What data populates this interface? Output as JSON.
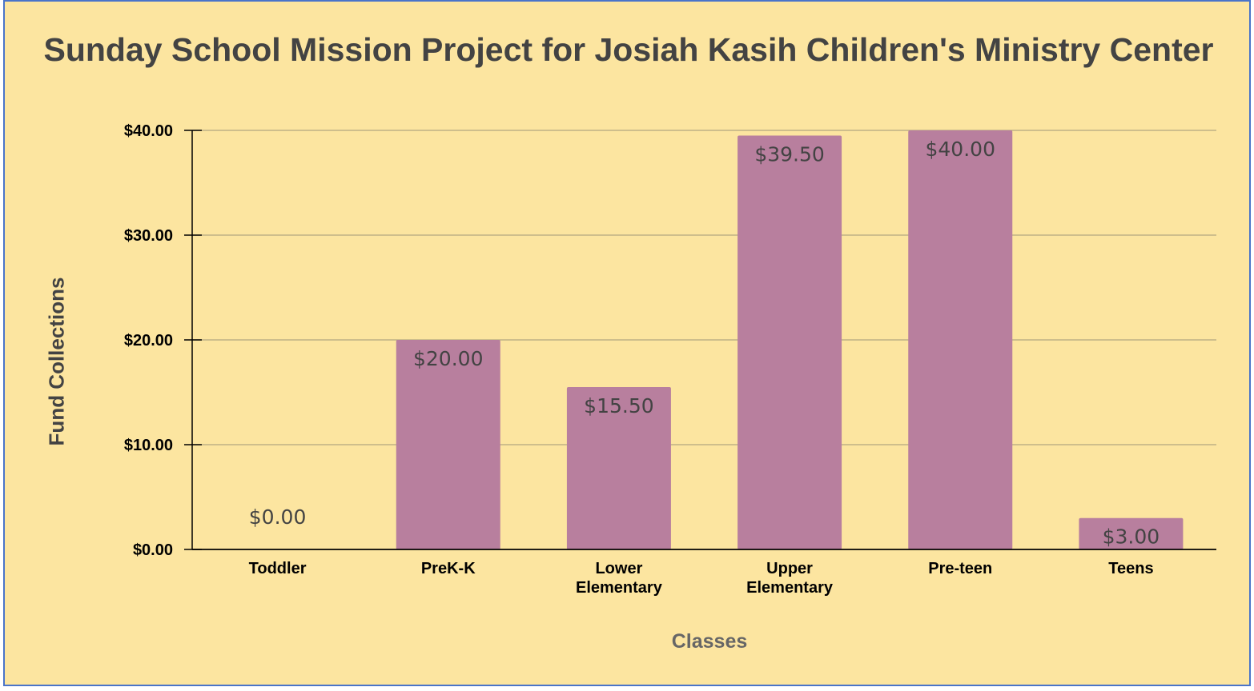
{
  "chart_data": {
    "type": "bar",
    "title": "Sunday School Mission Project for Josiah Kasih Children's Ministry Center",
    "xlabel": "Classes",
    "ylabel": "Fund Collections",
    "categories": [
      [
        "Toddler"
      ],
      [
        "PreK-K"
      ],
      [
        "Lower",
        "Elementary"
      ],
      [
        "Upper",
        "Elementary"
      ],
      [
        "Pre-teen"
      ],
      [
        "Teens"
      ]
    ],
    "values": [
      0,
      20,
      15.5,
      39.5,
      40,
      3
    ],
    "value_labels": [
      "$0.00",
      "$20.00",
      "$15.50",
      "$39.50",
      "$40.00",
      "$3.00"
    ],
    "ylim": [
      0,
      40
    ],
    "yticks": [
      0,
      10,
      20,
      30,
      40
    ],
    "ytick_labels": [
      "$0.00",
      "$10.00",
      "$20.00",
      "$30.00",
      "$40.00"
    ],
    "grid": true,
    "legend": "none",
    "bar_color": "#b87f9e",
    "background_color": "#fce5a0"
  }
}
